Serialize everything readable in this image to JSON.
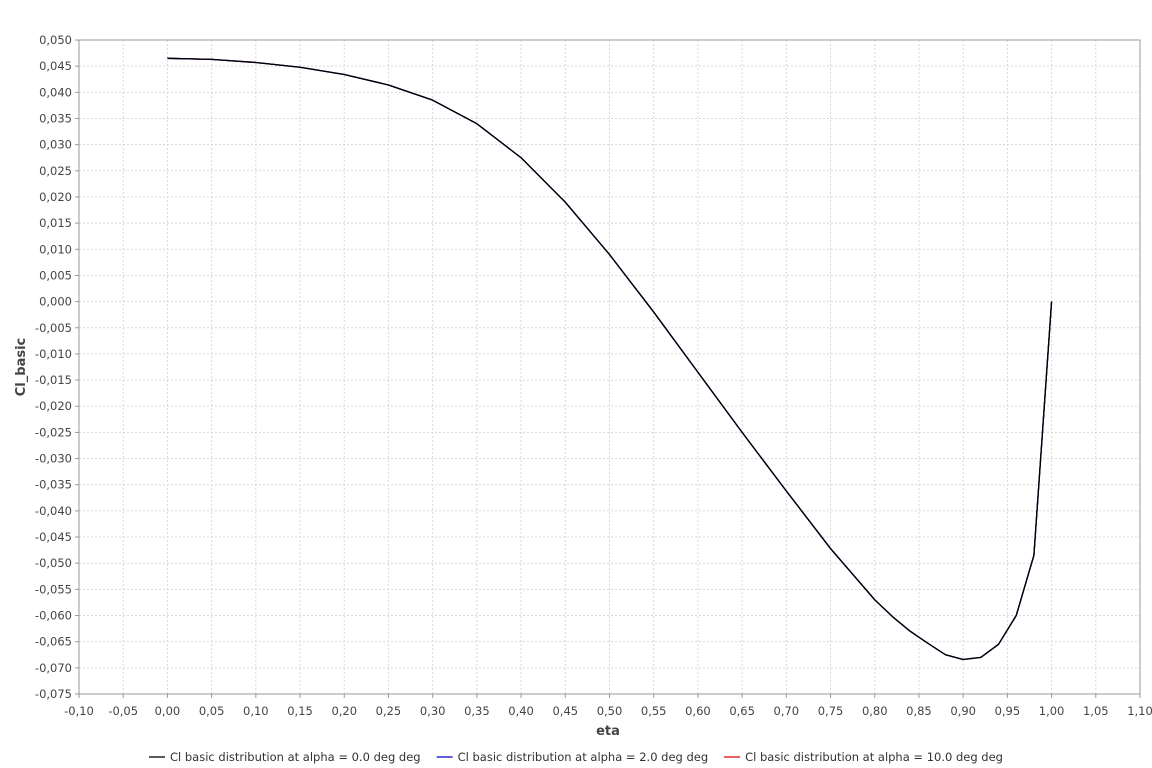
{
  "chart_data": {
    "type": "line",
    "title": "",
    "xlabel": "eta",
    "ylabel": "Cl_basic",
    "xlim": [
      -0.1,
      1.1
    ],
    "ylim": [
      -0.075,
      0.05
    ],
    "x_ticks": [
      "-0,10",
      "-0,05",
      "0,00",
      "0,05",
      "0,10",
      "0,15",
      "0,20",
      "0,25",
      "0,30",
      "0,35",
      "0,40",
      "0,45",
      "0,50",
      "0,55",
      "0,60",
      "0,65",
      "0,70",
      "0,75",
      "0,80",
      "0,85",
      "0,90",
      "0,95",
      "1,00",
      "1,05",
      "1,10"
    ],
    "y_ticks": [
      "0,050",
      "0,045",
      "0,040",
      "0,035",
      "0,030",
      "0,025",
      "0,020",
      "0,015",
      "0,010",
      "0,005",
      "0,000",
      "-0,005",
      "-0,010",
      "-0,015",
      "-0,020",
      "-0,025",
      "-0,030",
      "-0,035",
      "-0,040",
      "-0,045",
      "-0,050",
      "-0,055",
      "-0,060",
      "-0,065",
      "-0,070",
      "-0,075"
    ],
    "grid": true,
    "legend_position": "bottom",
    "series": [
      {
        "name": "Cl basic distribution at alpha = 0.0 deg deg",
        "color": "#000000",
        "x": [
          0.0,
          0.05,
          0.1,
          0.15,
          0.2,
          0.25,
          0.3,
          0.35,
          0.4,
          0.45,
          0.5,
          0.55,
          0.6,
          0.65,
          0.7,
          0.75,
          0.8,
          0.82,
          0.84,
          0.86,
          0.88,
          0.9,
          0.92,
          0.94,
          0.96,
          0.98,
          1.0
        ],
        "y": [
          0.0465,
          0.0463,
          0.0457,
          0.0448,
          0.0434,
          0.0414,
          0.0385,
          0.034,
          0.0275,
          0.019,
          0.009,
          -0.002,
          -0.0135,
          -0.025,
          -0.0362,
          -0.0472,
          -0.057,
          -0.0602,
          -0.063,
          -0.0653,
          -0.0675,
          -0.0684,
          -0.068,
          -0.0655,
          -0.06,
          -0.0485,
          0.0
        ]
      },
      {
        "name": "Cl basic distribution at alpha = 2.0 deg deg",
        "color": "#0000cc",
        "x": [
          0.0,
          0.05,
          0.1,
          0.15,
          0.2,
          0.25,
          0.3,
          0.35,
          0.4,
          0.45,
          0.5,
          0.55,
          0.6,
          0.65,
          0.7,
          0.75,
          0.8,
          0.82,
          0.84,
          0.86,
          0.88,
          0.9,
          0.92,
          0.94,
          0.96,
          0.98,
          1.0
        ],
        "y": [
          0.0465,
          0.0463,
          0.0457,
          0.0448,
          0.0434,
          0.0414,
          0.0385,
          0.034,
          0.0275,
          0.019,
          0.009,
          -0.002,
          -0.0135,
          -0.025,
          -0.0362,
          -0.0472,
          -0.057,
          -0.0602,
          -0.063,
          -0.0653,
          -0.0675,
          -0.0684,
          -0.068,
          -0.0655,
          -0.06,
          -0.0485,
          0.0
        ]
      },
      {
        "name": "Cl basic distribution at alpha = 10.0 deg deg",
        "color": "#dd0000",
        "x": [
          0.0,
          0.05,
          0.1,
          0.15,
          0.2,
          0.25,
          0.3,
          0.35,
          0.4,
          0.45,
          0.5,
          0.55,
          0.6,
          0.65,
          0.7,
          0.75,
          0.8,
          0.82,
          0.84,
          0.86,
          0.88,
          0.9,
          0.92,
          0.94,
          0.96,
          0.98,
          1.0
        ],
        "y": [
          0.0465,
          0.0463,
          0.0457,
          0.0448,
          0.0434,
          0.0414,
          0.0385,
          0.034,
          0.0275,
          0.019,
          0.009,
          -0.002,
          -0.0135,
          -0.025,
          -0.0362,
          -0.0472,
          -0.057,
          -0.0602,
          -0.063,
          -0.0653,
          -0.0675,
          -0.0684,
          -0.068,
          -0.0655,
          -0.06,
          -0.0485,
          0.0
        ]
      }
    ]
  }
}
